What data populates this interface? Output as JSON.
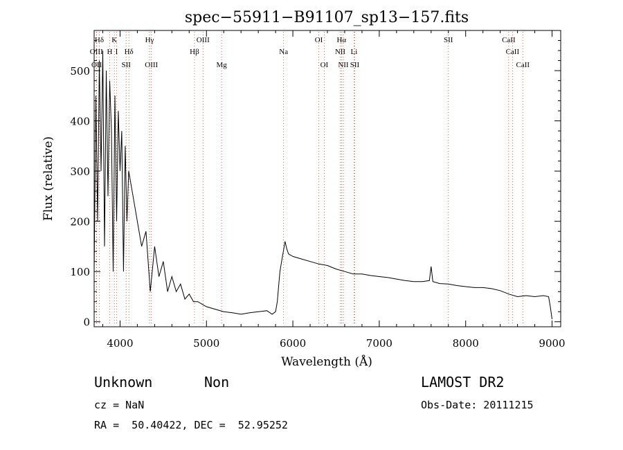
{
  "chart_data": {
    "type": "line",
    "title": "spec−55911−B91107_sp13−157.fits",
    "xlabel": "Wavelength (Å)",
    "ylabel": "Flux (relative)",
    "xlim": [
      3700,
      9100
    ],
    "ylim": [
      -10,
      580
    ],
    "xticks": [
      4000,
      5000,
      6000,
      7000,
      8000,
      9000
    ],
    "yticks": [
      0,
      100,
      200,
      300,
      400,
      500
    ],
    "grid": false,
    "series": [
      {
        "x": [
          3700,
          3720,
          3740,
          3760,
          3780,
          3800,
          3820,
          3840,
          3860,
          3880,
          3900,
          3920,
          3940,
          3960,
          3980,
          4000,
          4020,
          4040,
          4060,
          4080,
          4100,
          4150,
          4200,
          4250,
          4300,
          4350,
          4400,
          4450,
          4500,
          4550,
          4600,
          4650,
          4700,
          4750,
          4800,
          4850,
          4900,
          4950,
          5000,
          5100,
          5200,
          5300,
          5400,
          5500,
          5600,
          5700,
          5760,
          5800,
          5820,
          5840,
          5850,
          5870,
          5890,
          5910,
          5930,
          5950,
          6000,
          6100,
          6200,
          6300,
          6400,
          6500,
          6600,
          6700,
          6800,
          6900,
          7000,
          7100,
          7200,
          7300,
          7400,
          7500,
          7580,
          7600,
          7620,
          7700,
          7800,
          7900,
          8000,
          8100,
          8200,
          8300,
          8400,
          8500,
          8600,
          8700,
          8800,
          8900,
          8960,
          8980,
          9000
        ],
        "y": [
          100,
          450,
          200,
          520,
          300,
          540,
          150,
          500,
          250,
          480,
          380,
          100,
          450,
          200,
          420,
          300,
          380,
          100,
          350,
          200,
          300,
          250,
          200,
          150,
          180,
          60,
          150,
          90,
          120,
          60,
          90,
          60,
          75,
          45,
          55,
          40,
          40,
          35,
          30,
          25,
          20,
          18,
          15,
          18,
          20,
          22,
          15,
          20,
          40,
          80,
          100,
          120,
          140,
          160,
          145,
          135,
          130,
          125,
          120,
          115,
          112,
          105,
          100,
          95,
          95,
          92,
          90,
          88,
          85,
          82,
          80,
          80,
          82,
          110,
          80,
          76,
          75,
          72,
          70,
          68,
          68,
          66,
          62,
          55,
          50,
          52,
          50,
          52,
          50,
          30,
          5
        ]
      }
    ],
    "lines": [
      {
        "name": "Hδ",
        "x": 3760,
        "row": 1
      },
      {
        "name": "K",
        "x": 3934,
        "row": 1
      },
      {
        "name": "Hγ",
        "x": 4341,
        "row": 1
      },
      {
        "name": "OIII",
        "x": 4960,
        "row": 1
      },
      {
        "name": "OI",
        "x": 6300,
        "row": 1
      },
      {
        "name": "Hα",
        "x": 6563,
        "row": 1
      },
      {
        "name": "SII",
        "x": 7800,
        "row": 1
      },
      {
        "name": "CaII",
        "x": 8498,
        "row": 1
      },
      {
        "name": "OIII",
        "x": 3726,
        "row": 2
      },
      {
        "name": "H",
        "x": 3880,
        "row": 2
      },
      {
        "name": "I",
        "x": 3960,
        "row": 2
      },
      {
        "name": "Hδ",
        "x": 4102,
        "row": 2
      },
      {
        "name": "Hβ",
        "x": 4861,
        "row": 2
      },
      {
        "name": "Na",
        "x": 5893,
        "row": 2
      },
      {
        "name": "NII",
        "x": 6548,
        "row": 2
      },
      {
        "name": "Li",
        "x": 6708,
        "row": 2
      },
      {
        "name": "CaII",
        "x": 8542,
        "row": 2
      },
      {
        "name": "OII",
        "x": 3729,
        "row": 3
      },
      {
        "name": "SII",
        "x": 4070,
        "row": 3
      },
      {
        "name": "OIII",
        "x": 4363,
        "row": 3
      },
      {
        "name": "Mg",
        "x": 5175,
        "row": 3
      },
      {
        "name": "OI",
        "x": 6363,
        "row": 3
      },
      {
        "name": "NII",
        "x": 6584,
        "row": 3
      },
      {
        "name": "SII",
        "x": 6716,
        "row": 3
      },
      {
        "name": "CaII",
        "x": 8662,
        "row": 3
      }
    ]
  },
  "footer": {
    "object_class": "Unknown",
    "subclass": "Non",
    "survey": "LAMOST DR2",
    "cz": "cz = NaN",
    "obs_date": "Obs-Date: 20111215",
    "coords": "RA =  50.40422, DEC =  52.95252"
  }
}
